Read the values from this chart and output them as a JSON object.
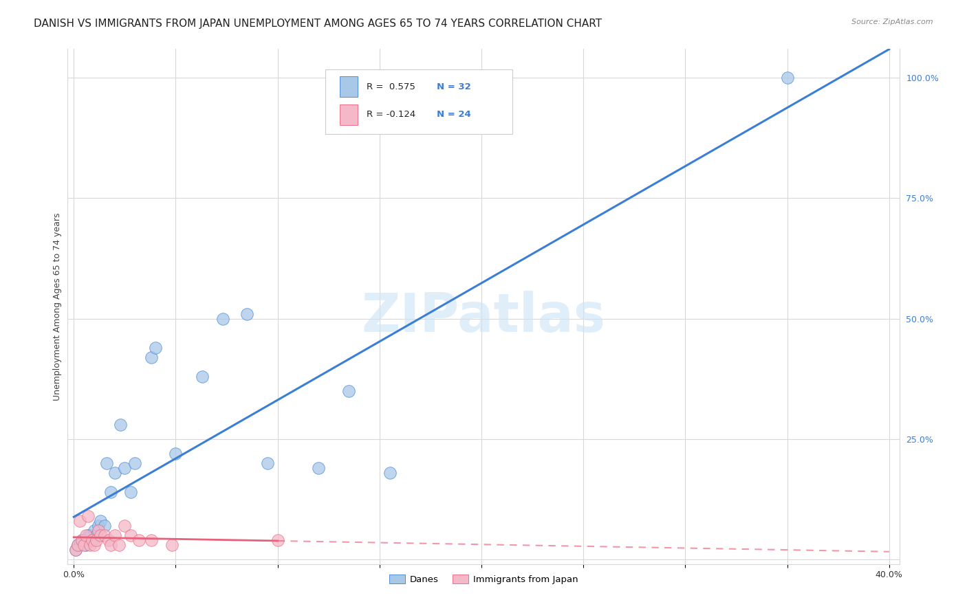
{
  "title": "DANISH VS IMMIGRANTS FROM JAPAN UNEMPLOYMENT AMONG AGES 65 TO 74 YEARS CORRELATION CHART",
  "source": "Source: ZipAtlas.com",
  "ylabel": "Unemployment Among Ages 65 to 74 years",
  "xlim": [
    -0.003,
    0.405
  ],
  "ylim": [
    -0.01,
    1.06
  ],
  "danes_x": [
    0.001,
    0.002,
    0.003,
    0.004,
    0.005,
    0.006,
    0.007,
    0.008,
    0.009,
    0.01,
    0.011,
    0.012,
    0.013,
    0.015,
    0.016,
    0.018,
    0.02,
    0.023,
    0.025,
    0.028,
    0.03,
    0.038,
    0.04,
    0.05,
    0.063,
    0.073,
    0.085,
    0.095,
    0.12,
    0.135,
    0.155,
    0.35
  ],
  "danes_y": [
    0.02,
    0.03,
    0.03,
    0.04,
    0.04,
    0.03,
    0.05,
    0.05,
    0.04,
    0.06,
    0.05,
    0.07,
    0.08,
    0.07,
    0.2,
    0.14,
    0.18,
    0.28,
    0.19,
    0.14,
    0.2,
    0.42,
    0.44,
    0.22,
    0.38,
    0.5,
    0.51,
    0.2,
    0.19,
    0.35,
    0.18,
    1.0
  ],
  "japan_x": [
    0.001,
    0.002,
    0.003,
    0.004,
    0.005,
    0.006,
    0.007,
    0.008,
    0.009,
    0.01,
    0.011,
    0.012,
    0.013,
    0.015,
    0.017,
    0.018,
    0.02,
    0.022,
    0.025,
    0.028,
    0.032,
    0.038,
    0.048,
    0.1
  ],
  "japan_y": [
    0.02,
    0.03,
    0.08,
    0.04,
    0.03,
    0.05,
    0.09,
    0.03,
    0.04,
    0.03,
    0.04,
    0.06,
    0.05,
    0.05,
    0.04,
    0.03,
    0.05,
    0.03,
    0.07,
    0.05,
    0.04,
    0.04,
    0.03,
    0.04
  ],
  "danes_color": "#a8c8e8",
  "japan_color": "#f4b8c8",
  "danes_line_color": "#3a7fd5",
  "japan_line_color": "#e8607a",
  "danes_R": 0.575,
  "danes_N": 32,
  "japan_R": -0.124,
  "japan_N": 24,
  "legend_labels": [
    "Danes",
    "Immigrants from Japan"
  ],
  "watermark": "ZIPatlas",
  "background_color": "#ffffff",
  "grid_color": "#d8d8d8",
  "title_fontsize": 11,
  "axis_fontsize": 9
}
